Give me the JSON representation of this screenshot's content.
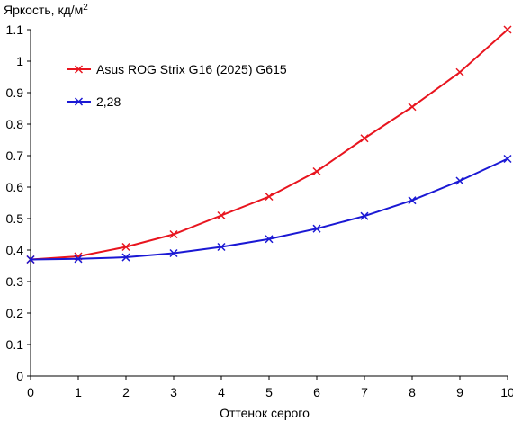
{
  "chart_data": {
    "type": "line",
    "ylabel": "Яркость, кд/м",
    "ylabel_sup": "2",
    "xlabel": "Оттенок серого",
    "x": [
      0,
      1,
      2,
      3,
      4,
      5,
      6,
      7,
      8,
      9,
      10
    ],
    "xlim": [
      0,
      10
    ],
    "ylim": [
      0,
      1.1
    ],
    "xticks": [
      0,
      1,
      2,
      3,
      4,
      5,
      6,
      7,
      8,
      9,
      10
    ],
    "yticks": [
      0,
      0.1,
      0.2,
      0.3,
      0.4,
      0.5,
      0.6,
      0.7,
      0.8,
      0.9,
      1,
      1.1
    ],
    "grid": false,
    "legend_position": "top-left",
    "series": [
      {
        "name": "Asus ROG Strix G16 (2025) G615",
        "color": "#e8141e",
        "marker": "x",
        "values": [
          0.37,
          0.38,
          0.41,
          0.45,
          0.51,
          0.57,
          0.65,
          0.755,
          0.855,
          0.965,
          1.1
        ]
      },
      {
        "name": "2,28",
        "color": "#1a18d4",
        "marker": "x",
        "values": [
          0.37,
          0.372,
          0.377,
          0.39,
          0.41,
          0.435,
          0.468,
          0.508,
          0.558,
          0.62,
          0.69
        ]
      }
    ]
  }
}
